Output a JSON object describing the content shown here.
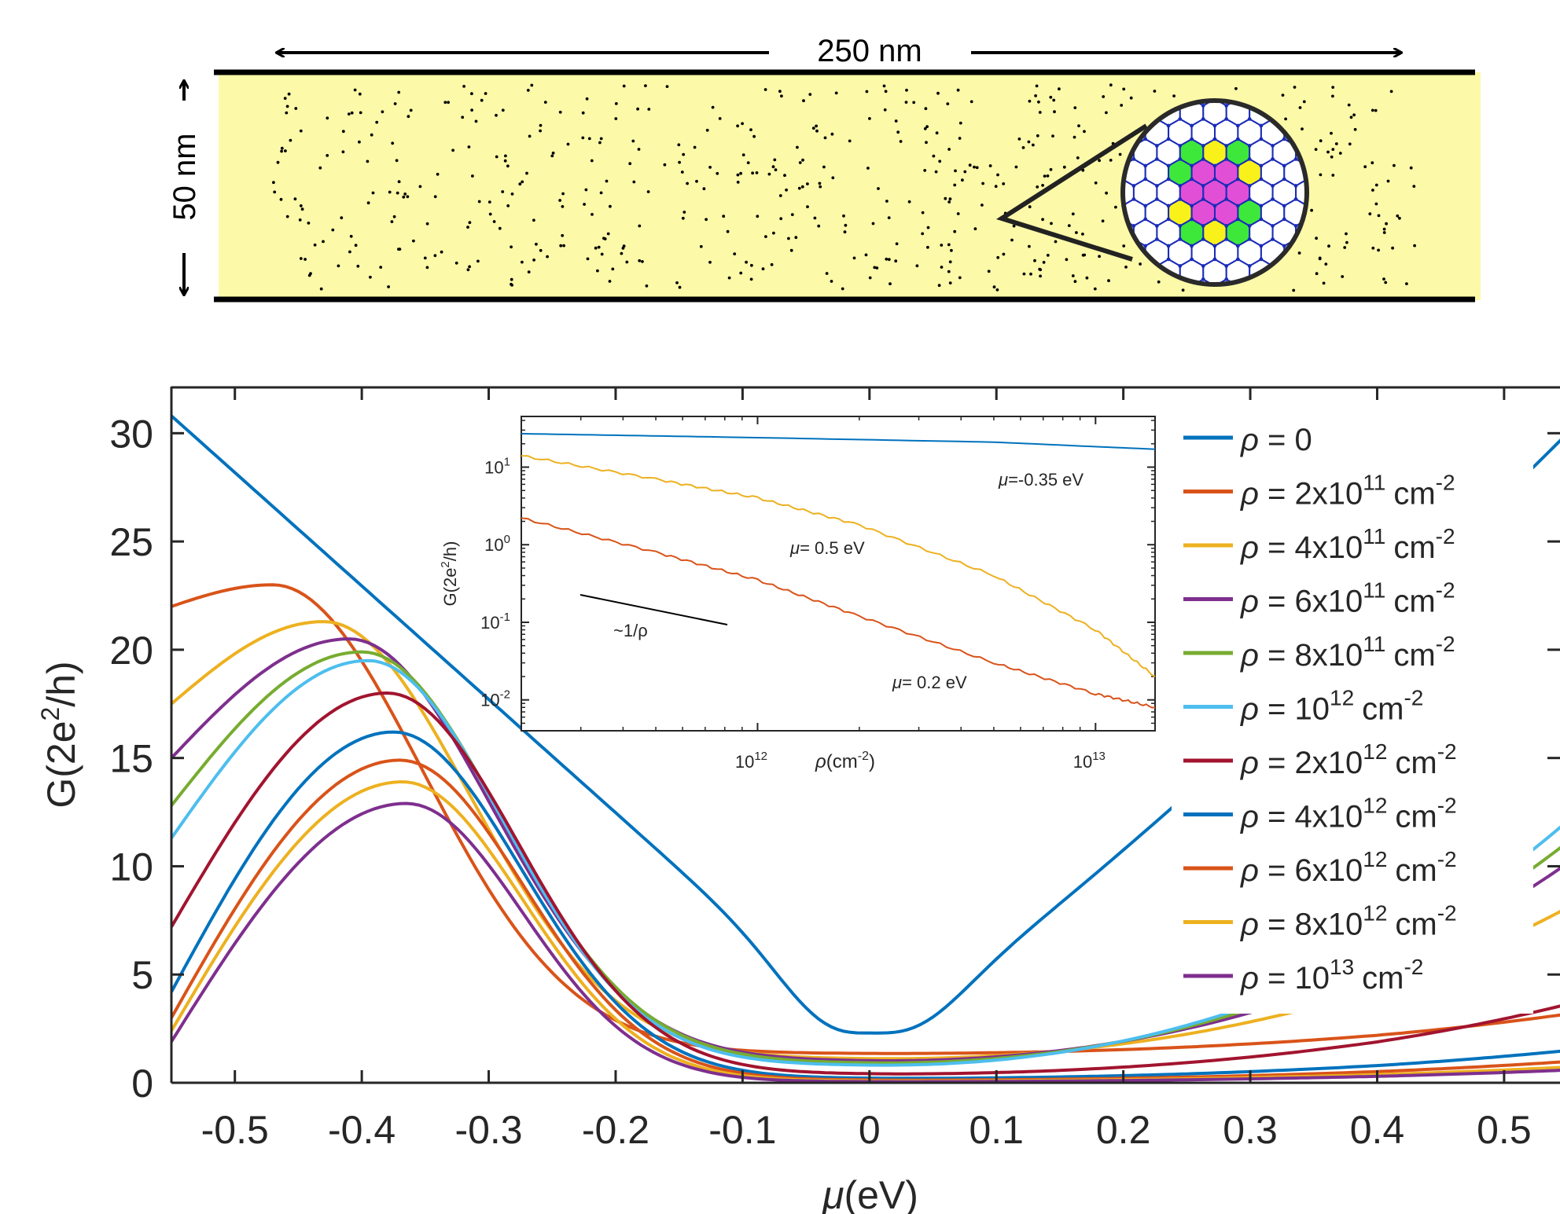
{
  "diagram": {
    "width_label": "250 nm",
    "height_label": "50 nm",
    "colors": {
      "ribbon": "#fcf9a8",
      "atoms": "#1a2bb8",
      "center": "#e14fd6",
      "ring": "#3ee83a",
      "accent": "#f8f21a"
    }
  },
  "chart_data": [
    {
      "type": "line",
      "xlabel": "μ(eV)",
      "ylabel": "G(2e²/h)",
      "xlim": [
        -0.55,
        0.55
      ],
      "ylim": [
        0,
        31.5
      ],
      "xticks": [
        "-0.5",
        "-0.4",
        "-0.3",
        "-0.2",
        "-0.1",
        "0",
        "0.1",
        "0.2",
        "0.3",
        "0.4",
        "0.5"
      ],
      "yticks": [
        "0",
        "5",
        "10",
        "15",
        "20",
        "25",
        "30"
      ],
      "legend_position": "right",
      "series": [
        {
          "name": "ρ = 0",
          "legend_base": "ρ = 0",
          "legend_exp": "",
          "legend_unit": "",
          "color": "#0072bd",
          "peak_x": -0.55,
          "peak_y": 30.8,
          "min_y": 2.0
        },
        {
          "name": "ρ = 2x10^11 cm^-2",
          "legend_base": "ρ = 2x10",
          "legend_exp": "11",
          "legend_unit": "cm",
          "color": "#d95319",
          "peak_x": -0.47,
          "peak_y": 23.0,
          "min_y": 1.35
        },
        {
          "name": "ρ = 4x10^11 cm^-2",
          "legend_base": "ρ = 4x10",
          "legend_exp": "11",
          "legend_unit": "cm",
          "color": "#edb120",
          "peak_x": -0.43,
          "peak_y": 21.3,
          "min_y": 1.1
        },
        {
          "name": "ρ = 6x10^11 cm^-2",
          "legend_base": "ρ = 6x10",
          "legend_exp": "11",
          "legend_unit": "cm",
          "color": "#7e2f8e",
          "peak_x": -0.41,
          "peak_y": 20.5,
          "min_y": 1.0
        },
        {
          "name": "ρ = 8x10^11 cm^-2",
          "legend_base": "ρ = 8x10",
          "legend_exp": "11",
          "legend_unit": "cm",
          "color": "#77ac30",
          "peak_x": -0.4,
          "peak_y": 19.9,
          "min_y": 0.9
        },
        {
          "name": "ρ = 10^12 cm^-2",
          "legend_base": "ρ = 10",
          "legend_exp": "12",
          "legend_unit": "cm",
          "color": "#4dbeee",
          "peak_x": -0.395,
          "peak_y": 19.5,
          "min_y": 0.8
        },
        {
          "name": "ρ = 2x10^12 cm^-2",
          "legend_base": "ρ = 2x10",
          "legend_exp": "12",
          "legend_unit": "cm",
          "color": "#a2142f",
          "peak_x": -0.38,
          "peak_y": 18.0,
          "min_y": 0.4
        },
        {
          "name": "ρ = 4x10^12 cm^-2",
          "legend_base": "ρ = 4x10",
          "legend_exp": "12",
          "legend_unit": "cm",
          "color": "#0072bd",
          "peak_x": -0.375,
          "peak_y": 16.2,
          "min_y": 0.2
        },
        {
          "name": "ρ = 6x10^12 cm^-2",
          "legend_base": "ρ = 6x10",
          "legend_exp": "12",
          "legend_unit": "cm",
          "color": "#d95319",
          "peak_x": -0.37,
          "peak_y": 14.9,
          "min_y": 0.12
        },
        {
          "name": "ρ = 8x10^12 cm^-2",
          "legend_base": "ρ = 8x10",
          "legend_exp": "12",
          "legend_unit": "cm",
          "color": "#edb120",
          "peak_x": -0.368,
          "peak_y": 13.9,
          "min_y": 0.08
        },
        {
          "name": "ρ = 10^13 cm^-2",
          "legend_base": "ρ = 10",
          "legend_exp": "13",
          "legend_unit": "cm",
          "color": "#7e2f8e",
          "peak_x": -0.365,
          "peak_y": 12.9,
          "min_y": 0.05
        }
      ]
    },
    {
      "type": "line",
      "xscale": "log",
      "yscale": "log",
      "xlabel": "ρ(cm⁻²)",
      "ylabel": "G(2e²/h)",
      "xlim": [
        200000000000.0,
        15000000000000.0
      ],
      "ylim": [
        0.004,
        45
      ],
      "xticks": [
        {
          "base": "10",
          "exp": "12"
        },
        {
          "base": "10",
          "exp": "13"
        }
      ],
      "yticks": [
        {
          "base": "10",
          "exp": "1"
        },
        {
          "base": "10",
          "exp": "0"
        },
        {
          "base": "10",
          "exp": "-1"
        },
        {
          "base": "10",
          "exp": "-2"
        }
      ],
      "series": [
        {
          "label": "μ=-0.35 eV",
          "color": "#0072bd",
          "x": [
            200000000000.0,
            1000000000000.0,
            5000000000000.0,
            15000000000000.0
          ],
          "y": [
            27,
            24,
            21,
            17
          ]
        },
        {
          "label": "μ= 0.5 eV",
          "color": "#edb120",
          "x": [
            200000000000.0,
            500000000000.0,
            1000000000000.0,
            2000000000000.0,
            5000000000000.0,
            10000000000000.0,
            15000000000000.0
          ],
          "y": [
            14,
            7,
            4,
            1.8,
            0.4,
            0.08,
            0.02
          ]
        },
        {
          "label": "μ= 0.2 eV",
          "color": "#d95319",
          "x": [
            200000000000.0,
            500000000000.0,
            1000000000000.0,
            2000000000000.0,
            5000000000000.0,
            10000000000000.0,
            15000000000000.0
          ],
          "y": [
            2.2,
            0.8,
            0.35,
            0.12,
            0.03,
            0.012,
            0.008
          ]
        }
      ],
      "reference_line_label": "~1/ρ"
    }
  ]
}
